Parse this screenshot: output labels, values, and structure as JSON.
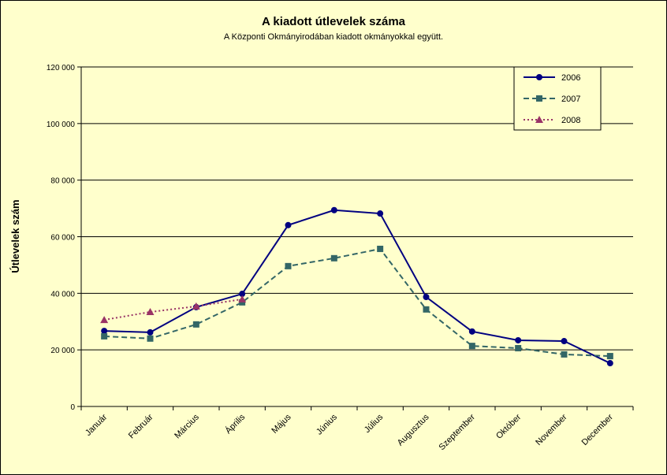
{
  "chart_data": {
    "type": "line",
    "title": "A  kiadott útlevelek száma",
    "subtitle": "A Központi Okmányirodában kiadott okmányokkal együtt.",
    "y_label": "Útlevelek szám",
    "categories": [
      "Január",
      "Február",
      "Március",
      "Április",
      "Május",
      "Június",
      "Július",
      "Augusztus",
      "Szeptember",
      "Október",
      "November",
      "December"
    ],
    "series": [
      {
        "name": "2006",
        "color": "#000080",
        "line_style": "solid",
        "marker": "circle",
        "values": [
          26700,
          26200,
          35100,
          39800,
          64100,
          69400,
          68200,
          38700,
          26500,
          23400,
          23100,
          15300
        ]
      },
      {
        "name": "2007",
        "color": "#336666",
        "line_style": "dashed",
        "marker": "square",
        "values": [
          24800,
          24000,
          29000,
          36800,
          49600,
          52400,
          55700,
          34300,
          21400,
          20600,
          18400,
          17800
        ]
      },
      {
        "name": "2008",
        "color": "#993366",
        "line_style": "dotted",
        "marker": "triangle",
        "values": [
          30600,
          33400,
          35400,
          37900,
          null,
          null,
          null,
          null,
          null,
          null,
          null,
          null
        ]
      }
    ],
    "ylim": [
      0,
      120000
    ],
    "yticks": [
      0,
      {
        "value": 20000,
        "label": "20 000"
      },
      {
        "value": 40000,
        "label": "40 000"
      },
      {
        "value": 60000,
        "label": "60 000"
      },
      {
        "value": 80000,
        "label": "80 000"
      },
      {
        "value": 100000,
        "label": "100 000"
      },
      {
        "value": 120000,
        "label": "120 000"
      }
    ],
    "grid": true,
    "legend": "upper right"
  }
}
